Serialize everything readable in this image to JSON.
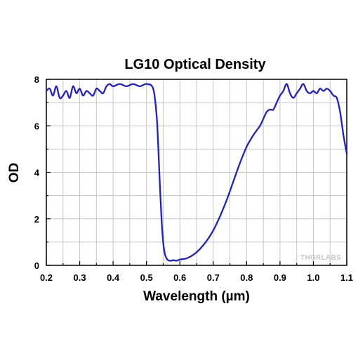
{
  "chart_data": {
    "type": "line",
    "title": "LG10 Optical Density",
    "xlabel": "Wavelength (µm)",
    "ylabel": "OD",
    "xlim": [
      0.2,
      1.1
    ],
    "ylim": [
      0,
      8
    ],
    "x_ticks": [
      "0.2",
      "0.3",
      "0.4",
      "0.5",
      "0.6",
      "0.7",
      "0.8",
      "0.9",
      "1.0",
      "1.1"
    ],
    "y_ticks": [
      "0",
      "2",
      "4",
      "6",
      "8"
    ],
    "grid": true,
    "line_color": "#1f1fd0",
    "series": [
      {
        "x": [
          0.2,
          0.21,
          0.22,
          0.23,
          0.24,
          0.25,
          0.26,
          0.27,
          0.28,
          0.29,
          0.3,
          0.31,
          0.32,
          0.33,
          0.34,
          0.35,
          0.36,
          0.37,
          0.38,
          0.39,
          0.4,
          0.42,
          0.44,
          0.46,
          0.48,
          0.5,
          0.52,
          0.53,
          0.535,
          0.54,
          0.545,
          0.55,
          0.555,
          0.56,
          0.565,
          0.57,
          0.575,
          0.58,
          0.59,
          0.6,
          0.62,
          0.64,
          0.66,
          0.68,
          0.7,
          0.72,
          0.74,
          0.76,
          0.78,
          0.8,
          0.82,
          0.84,
          0.85,
          0.86,
          0.87,
          0.88,
          0.89,
          0.9,
          0.91,
          0.92,
          0.93,
          0.94,
          0.95,
          0.96,
          0.97,
          0.98,
          0.99,
          1.0,
          1.01,
          1.02,
          1.03,
          1.04,
          1.05,
          1.06,
          1.07,
          1.08,
          1.09,
          1.1
        ],
        "y": [
          7.5,
          7.6,
          7.3,
          7.7,
          7.2,
          7.3,
          7.5,
          7.2,
          7.7,
          7.4,
          7.6,
          7.3,
          7.5,
          7.4,
          7.3,
          7.6,
          7.5,
          7.4,
          7.7,
          7.8,
          7.7,
          7.8,
          7.7,
          7.8,
          7.7,
          7.8,
          7.6,
          6.5,
          5.2,
          3.5,
          2.0,
          1.0,
          0.5,
          0.3,
          0.22,
          0.2,
          0.2,
          0.22,
          0.2,
          0.25,
          0.3,
          0.45,
          0.7,
          1.05,
          1.5,
          2.1,
          2.8,
          3.6,
          4.4,
          5.1,
          5.6,
          6.0,
          6.3,
          6.6,
          6.7,
          6.7,
          7.0,
          7.3,
          7.5,
          7.8,
          7.4,
          7.2,
          7.4,
          7.6,
          7.8,
          7.5,
          7.4,
          7.5,
          7.4,
          7.6,
          7.5,
          7.6,
          7.5,
          7.3,
          7.2,
          6.6,
          5.6,
          4.8
        ]
      }
    ]
  },
  "watermark": "THORLABS"
}
